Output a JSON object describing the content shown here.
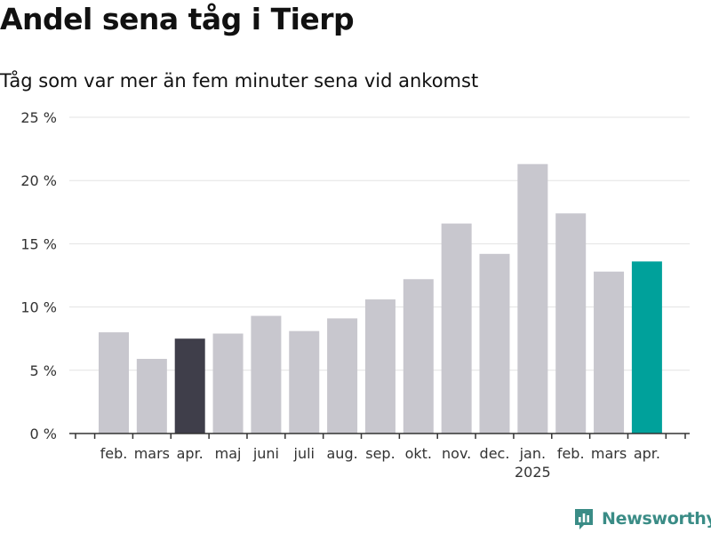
{
  "title": "Andel sena tåg i Tierp",
  "subtitle": "Tåg som var mer än fem minuter sena vid ankomst",
  "brand": "Newsworthy",
  "colors": {
    "default_bar": "#c8c7ce",
    "highlight_prev_year": "#3f3e4a",
    "highlight_current": "#00a19b",
    "grid": "#e3e3e3",
    "axis": "#333333",
    "brand": "#3a8c86"
  },
  "chart_data": {
    "type": "bar",
    "title": "Andel sena tåg i Tierp",
    "subtitle": "Tåg som var mer än fem minuter sena vid ankomst",
    "categories": [
      "feb.",
      "mars",
      "apr.",
      "maj",
      "juni",
      "juli",
      "aug.",
      "sep.",
      "okt.",
      "nov.",
      "dec.",
      "jan.",
      "feb.",
      "mars",
      "apr."
    ],
    "year_labels": [
      {
        "index": 11,
        "label": "2025"
      }
    ],
    "values": [
      8.0,
      5.9,
      7.5,
      7.9,
      9.3,
      8.1,
      9.1,
      10.6,
      12.2,
      16.6,
      14.2,
      21.3,
      17.4,
      12.8,
      13.6
    ],
    "highlights": {
      "2": "highlight_prev_year",
      "14": "highlight_current"
    },
    "ylim": [
      0,
      25
    ],
    "yticks": [
      0,
      5,
      10,
      15,
      20,
      25
    ],
    "ytick_labels": [
      "0 %",
      "5 %",
      "10 %",
      "15 %",
      "20 %",
      "25 %"
    ],
    "xlabel": "",
    "ylabel": "",
    "grid": true
  }
}
